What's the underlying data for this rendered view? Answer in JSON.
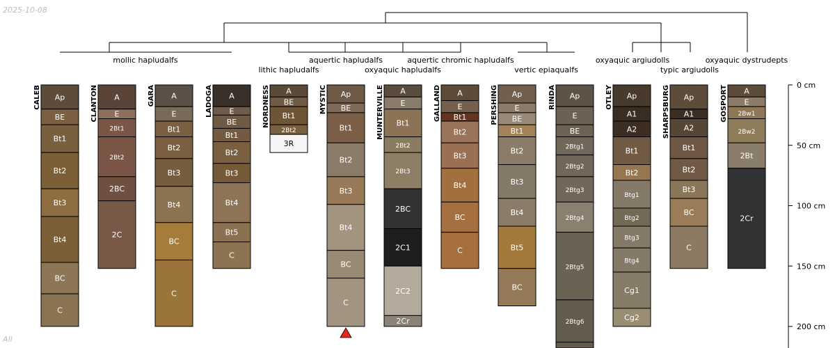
{
  "date_label": "2025-10-08",
  "footer_label": "All",
  "colors": {
    "line": "#000000",
    "truncation_marker": "#e8231b",
    "label_light": "#ffffff",
    "label_dark": "#000000"
  },
  "depth_axis": {
    "unit": "cm",
    "max_depth_cm": 220,
    "ticks": [
      {
        "depth": 0,
        "label": "0 cm"
      },
      {
        "depth": 50,
        "label": "50 cm"
      },
      {
        "depth": 100,
        "label": "100 cm"
      },
      {
        "depth": 150,
        "label": "150 cm"
      },
      {
        "depth": 200,
        "label": "200 cm"
      }
    ]
  },
  "chart_data": {
    "type": "soil-profile-sketch",
    "title": "",
    "dendrogram_tips": [
      "mollic hapludalfs",
      "lithic hapludalfs",
      "aquertic hapludalfs",
      "oxyaquic hapludalfs",
      "aquertic chromic hapludalfs",
      "vertic epiaqualfs",
      "oxyaquic argiudolls",
      "typic argiudolls",
      "oxyaquic dystrudepts"
    ],
    "profiles": [
      {
        "name": "CALEB",
        "horizons": [
          {
            "name": "Ap",
            "top": 0,
            "bottom": 20,
            "color": "#5e4c3a"
          },
          {
            "name": "BE",
            "top": 20,
            "bottom": 33,
            "color": "#7a5f40"
          },
          {
            "name": "Bt1",
            "top": 33,
            "bottom": 56,
            "color": "#78603f"
          },
          {
            "name": "Bt2",
            "top": 56,
            "bottom": 86,
            "color": "#7d5f37"
          },
          {
            "name": "Bt3",
            "top": 86,
            "bottom": 109,
            "color": "#8e6d42"
          },
          {
            "name": "Bt4",
            "top": 109,
            "bottom": 147,
            "color": "#7d5f37"
          },
          {
            "name": "BC",
            "top": 147,
            "bottom": 173,
            "color": "#8e7556"
          },
          {
            "name": "C",
            "top": 173,
            "bottom": 200,
            "color": "#8c7352"
          }
        ]
      },
      {
        "name": "CLANTON",
        "horizons": [
          {
            "name": "A",
            "top": 0,
            "bottom": 20,
            "color": "#5a4437"
          },
          {
            "name": "E",
            "top": 20,
            "bottom": 28,
            "color": "#8d6f5b"
          },
          {
            "name": "2Bt1",
            "top": 28,
            "bottom": 43,
            "color": "#7b5545"
          },
          {
            "name": "2Bt2",
            "top": 43,
            "bottom": 76,
            "color": "#7b5545"
          },
          {
            "name": "2BC",
            "top": 76,
            "bottom": 96,
            "color": "#6f5040"
          },
          {
            "name": "2C",
            "top": 96,
            "bottom": 152,
            "color": "#7a5848"
          }
        ]
      },
      {
        "name": "GARA",
        "horizons": [
          {
            "name": "A",
            "top": 0,
            "bottom": 18,
            "color": "#5d5046"
          },
          {
            "name": "E",
            "top": 18,
            "bottom": 30,
            "color": "#7a6a5a"
          },
          {
            "name": "Bt1",
            "top": 30,
            "bottom": 43,
            "color": "#7a5f40"
          },
          {
            "name": "Bt2",
            "top": 43,
            "bottom": 61,
            "color": "#7a5f40"
          },
          {
            "name": "Bt3",
            "top": 61,
            "bottom": 84,
            "color": "#765d40"
          },
          {
            "name": "Bt4",
            "top": 84,
            "bottom": 114,
            "color": "#8c7352"
          },
          {
            "name": "BC",
            "top": 114,
            "bottom": 145,
            "color": "#a67c3a"
          },
          {
            "name": "C",
            "top": 145,
            "bottom": 200,
            "color": "#9a7438"
          }
        ]
      },
      {
        "name": "LADOGA",
        "horizons": [
          {
            "name": "A",
            "top": 0,
            "bottom": 18,
            "color": "#3a302a"
          },
          {
            "name": "E",
            "top": 18,
            "bottom": 25,
            "color": "#6e5c4c"
          },
          {
            "name": "BE",
            "top": 25,
            "bottom": 36,
            "color": "#6e5a45"
          },
          {
            "name": "Bt1",
            "top": 36,
            "bottom": 47,
            "color": "#735a40"
          },
          {
            "name": "Bt2",
            "top": 47,
            "bottom": 65,
            "color": "#7a5f40"
          },
          {
            "name": "Bt3",
            "top": 65,
            "bottom": 81,
            "color": "#765a38"
          },
          {
            "name": "Bt4",
            "top": 81,
            "bottom": 114,
            "color": "#8e7456"
          },
          {
            "name": "Bt5",
            "top": 114,
            "bottom": 130,
            "color": "#8a7152"
          },
          {
            "name": "C",
            "top": 130,
            "bottom": 152,
            "color": "#8c7352"
          }
        ]
      },
      {
        "name": "NORDNESS",
        "horizons": [
          {
            "name": "A",
            "top": 0,
            "bottom": 10,
            "color": "#5a4a3a"
          },
          {
            "name": "BE",
            "top": 10,
            "bottom": 18,
            "color": "#6e5a45"
          },
          {
            "name": "Bt1",
            "top": 18,
            "bottom": 33,
            "color": "#6e5535"
          },
          {
            "name": "2Bt2",
            "top": 33,
            "bottom": 41,
            "color": "#7a5f40"
          },
          {
            "name": "3R",
            "top": 41,
            "bottom": 56,
            "color": "#f5f5f5"
          }
        ]
      },
      {
        "name": "MYSTIC",
        "truncated": true,
        "horizons": [
          {
            "name": "Ap",
            "top": 0,
            "bottom": 15,
            "color": "#6e5a46"
          },
          {
            "name": "BE",
            "top": 15,
            "bottom": 23,
            "color": "#7d6a57"
          },
          {
            "name": "Bt1",
            "top": 23,
            "bottom": 48,
            "color": "#7d5f48"
          },
          {
            "name": "Bt2",
            "top": 48,
            "bottom": 76,
            "color": "#8a7c68"
          },
          {
            "name": "Bt3",
            "top": 76,
            "bottom": 99,
            "color": "#997a58"
          },
          {
            "name": "Bt4",
            "top": 99,
            "bottom": 137,
            "color": "#a39480"
          },
          {
            "name": "BC",
            "top": 137,
            "bottom": 160,
            "color": "#988a74"
          },
          {
            "name": "C",
            "top": 160,
            "bottom": 200,
            "color": "#a29480"
          }
        ]
      },
      {
        "name": "MUNTERVILLE",
        "horizons": [
          {
            "name": "A",
            "top": 0,
            "bottom": 10,
            "color": "#5a4c3e"
          },
          {
            "name": "E",
            "top": 10,
            "bottom": 20,
            "color": "#8a7c6a"
          },
          {
            "name": "Bt1",
            "top": 20,
            "bottom": 43,
            "color": "#8c7356"
          },
          {
            "name": "2Bt2",
            "top": 43,
            "bottom": 56,
            "color": "#8a7c60"
          },
          {
            "name": "2Bt3",
            "top": 56,
            "bottom": 86,
            "color": "#8c7f66"
          },
          {
            "name": "2BC",
            "top": 86,
            "bottom": 119,
            "color": "#333333"
          },
          {
            "name": "2C1",
            "top": 119,
            "bottom": 150,
            "color": "#1e1e1e"
          },
          {
            "name": "2C2",
            "top": 150,
            "bottom": 191,
            "color": "#b3aa9b"
          },
          {
            "name": "2Cr",
            "top": 191,
            "bottom": 200,
            "color": "#8a8478"
          }
        ]
      },
      {
        "name": "GALLAND",
        "horizons": [
          {
            "name": "A",
            "top": 0,
            "bottom": 13,
            "color": "#5e4c3a"
          },
          {
            "name": "E",
            "top": 13,
            "bottom": 23,
            "color": "#73604d"
          },
          {
            "name": "Bt1",
            "top": 23,
            "bottom": 30,
            "color": "#633520"
          },
          {
            "name": "Bt2",
            "top": 30,
            "bottom": 48,
            "color": "#9a735a"
          },
          {
            "name": "Bt3",
            "top": 48,
            "bottom": 69,
            "color": "#9a7052"
          },
          {
            "name": "Bt4",
            "top": 69,
            "bottom": 97,
            "color": "#a2703e"
          },
          {
            "name": "BC",
            "top": 97,
            "bottom": 122,
            "color": "#a56f40"
          },
          {
            "name": "C",
            "top": 122,
            "bottom": 152,
            "color": "#a6703e"
          }
        ]
      },
      {
        "name": "PERSHING",
        "horizons": [
          {
            "name": "Ap",
            "top": 0,
            "bottom": 15,
            "color": "#73604c"
          },
          {
            "name": "E",
            "top": 15,
            "bottom": 23,
            "color": "#8a7c68"
          },
          {
            "name": "BE",
            "top": 23,
            "bottom": 33,
            "color": "#978a76"
          },
          {
            "name": "Bt1",
            "top": 33,
            "bottom": 43,
            "color": "#a48258"
          },
          {
            "name": "Bt2",
            "top": 43,
            "bottom": 66,
            "color": "#8a7c68"
          },
          {
            "name": "Bt3",
            "top": 66,
            "bottom": 94,
            "color": "#857a68"
          },
          {
            "name": "Bt4",
            "top": 94,
            "bottom": 117,
            "color": "#8a7c68"
          },
          {
            "name": "Bt5",
            "top": 117,
            "bottom": 152,
            "color": "#a27a3a"
          },
          {
            "name": "BC",
            "top": 152,
            "bottom": 183,
            "color": "#957a5a"
          }
        ]
      },
      {
        "name": "RINDA",
        "horizons": [
          {
            "name": "Ap",
            "top": 0,
            "bottom": 18,
            "color": "#5e5446"
          },
          {
            "name": "E",
            "top": 18,
            "bottom": 33,
            "color": "#6c6254"
          },
          {
            "name": "BE",
            "top": 33,
            "bottom": 43,
            "color": "#6e6252"
          },
          {
            "name": "2Btg1",
            "top": 43,
            "bottom": 58,
            "color": "#72685a"
          },
          {
            "name": "2Btg2",
            "top": 58,
            "bottom": 76,
            "color": "#72685a"
          },
          {
            "name": "2Btg3",
            "top": 76,
            "bottom": 97,
            "color": "#72685a"
          },
          {
            "name": "2Btg4",
            "top": 97,
            "bottom": 122,
            "color": "#8a8070"
          },
          {
            "name": "2Btg5",
            "top": 122,
            "bottom": 178,
            "color": "#6a6252"
          },
          {
            "name": "2Btg6",
            "top": 178,
            "bottom": 213,
            "color": "#635b4d"
          },
          {
            "name": "",
            "top": 213,
            "bottom": 220,
            "color": "#635b4d"
          }
        ]
      },
      {
        "name": "OTLEY",
        "horizons": [
          {
            "name": "Ap",
            "top": 0,
            "bottom": 18,
            "color": "#483a2c"
          },
          {
            "name": "A1",
            "top": 18,
            "bottom": 30,
            "color": "#3a2e24"
          },
          {
            "name": "A2",
            "top": 30,
            "bottom": 43,
            "color": "#3c2e22"
          },
          {
            "name": "Bt1",
            "top": 43,
            "bottom": 66,
            "color": "#715a44"
          },
          {
            "name": "Bt2",
            "top": 66,
            "bottom": 79,
            "color": "#977652"
          },
          {
            "name": "Btg1",
            "top": 79,
            "bottom": 102,
            "color": "#857a68"
          },
          {
            "name": "Btg2",
            "top": 102,
            "bottom": 117,
            "color": "#736a56"
          },
          {
            "name": "Btg3",
            "top": 117,
            "bottom": 135,
            "color": "#857a68"
          },
          {
            "name": "Btg4",
            "top": 135,
            "bottom": 155,
            "color": "#857a68"
          },
          {
            "name": "Cg1",
            "top": 155,
            "bottom": 185,
            "color": "#877c68"
          },
          {
            "name": "Cg2",
            "top": 185,
            "bottom": 200,
            "color": "#9a8e72"
          }
        ]
      },
      {
        "name": "SHARPSBURG",
        "horizons": [
          {
            "name": "Ap",
            "top": 0,
            "bottom": 20,
            "color": "#5e4c3a"
          },
          {
            "name": "A1",
            "top": 20,
            "bottom": 28,
            "color": "#3c2e24"
          },
          {
            "name": "A2",
            "top": 28,
            "bottom": 43,
            "color": "#564636"
          },
          {
            "name": "Bt1",
            "top": 43,
            "bottom": 61,
            "color": "#6e5845"
          },
          {
            "name": "Bt2",
            "top": 61,
            "bottom": 79,
            "color": "#705a45"
          },
          {
            "name": "Bt3",
            "top": 79,
            "bottom": 94,
            "color": "#8a7658"
          },
          {
            "name": "BC",
            "top": 94,
            "bottom": 117,
            "color": "#9a7c58"
          },
          {
            "name": "C",
            "top": 117,
            "bottom": 152,
            "color": "#8c7a62"
          }
        ]
      },
      {
        "name": "GOSPORT",
        "horizons": [
          {
            "name": "A",
            "top": 0,
            "bottom": 10,
            "color": "#5e4c3a"
          },
          {
            "name": "E",
            "top": 10,
            "bottom": 18,
            "color": "#8a7c68"
          },
          {
            "name": "2Bw1",
            "top": 18,
            "bottom": 28,
            "color": "#8e7656"
          },
          {
            "name": "2Bw2",
            "top": 28,
            "bottom": 48,
            "color": "#8f7c5a"
          },
          {
            "name": "2Bt",
            "top": 48,
            "bottom": 69,
            "color": "#8a7e6a"
          },
          {
            "name": "2Cr",
            "top": 69,
            "bottom": 152,
            "color": "#303234"
          }
        ]
      }
    ]
  }
}
